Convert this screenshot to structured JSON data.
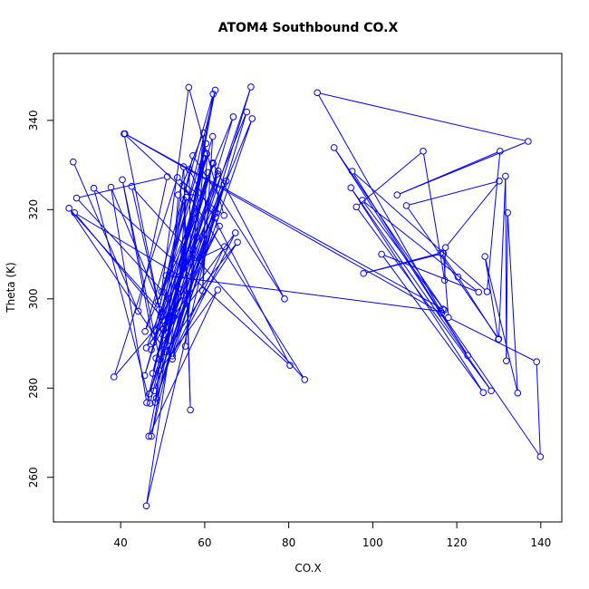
{
  "chart_data": {
    "type": "line",
    "title": "ATOM4 Southbound CO.X",
    "xlabel": "CO.X",
    "ylabel": "Theta (K)",
    "xlim": [
      24,
      145
    ],
    "ylim": [
      250,
      355
    ],
    "x_ticks": [
      40,
      60,
      80,
      100,
      120,
      140
    ],
    "y_ticks": [
      260,
      280,
      300,
      320,
      340
    ],
    "grid": false,
    "marker": "open-circle",
    "series": [
      {
        "name": "",
        "color": "#0000ff",
        "points": [
          [
            28.7,
            330.7
          ],
          [
            44.2,
            297.2
          ],
          [
            51.1,
            327.4
          ],
          [
            29.5,
            322.6
          ],
          [
            50.2,
            301.5
          ],
          [
            55.6,
            322.8
          ],
          [
            53.7,
            302.3
          ],
          [
            60.3,
            334.8
          ],
          [
            49.7,
            301.6
          ],
          [
            56.2,
            347.4
          ],
          [
            64.6,
            318.7
          ],
          [
            53.5,
            327.2
          ],
          [
            38.4,
            282.5
          ],
          [
            55.0,
            300.8
          ],
          [
            46.1,
            289.0
          ],
          [
            57.8,
            318.0
          ],
          [
            48.9,
            299.5
          ],
          [
            37.7,
            325.0
          ],
          [
            46.2,
            276.7
          ],
          [
            59.9,
            331.5
          ],
          [
            55.4,
            289.4
          ],
          [
            59.7,
            337.2
          ],
          [
            53.7,
            323.3
          ],
          [
            51.0,
            289.7
          ],
          [
            62.5,
            346.8
          ],
          [
            47.8,
            290.2
          ],
          [
            40.4,
            326.7
          ],
          [
            49.3,
            286.4
          ],
          [
            71.0,
            347.5
          ],
          [
            48.5,
            277.7
          ],
          [
            64.6,
            325.8
          ],
          [
            46.8,
            278.7
          ],
          [
            66.8,
            340.8
          ],
          [
            45.8,
            292.7
          ],
          [
            62.0,
            345.9
          ],
          [
            47.3,
            269.2
          ],
          [
            58.1,
            313.8
          ],
          [
            50.2,
            293.3
          ],
          [
            40.8,
            337.0
          ],
          [
            57.1,
            322.7
          ],
          [
            54.8,
            325.4
          ],
          [
            83.8,
            281.9
          ],
          [
            42.6,
            325.2
          ],
          [
            49.2,
            297.6
          ],
          [
            27.7,
            320.3
          ],
          [
            50.8,
            288.1
          ],
          [
            67.8,
            312.7
          ],
          [
            50.1,
            291.9
          ],
          [
            71.3,
            340.4
          ],
          [
            48.2,
            276.8
          ],
          [
            55.0,
            329.6
          ],
          [
            56.6,
            275.1
          ],
          [
            55.0,
            322.2
          ],
          [
            49.7,
            296.0
          ],
          [
            29.0,
            319.3
          ],
          [
            54.2,
            305.1
          ],
          [
            70.0,
            341.9
          ],
          [
            52.3,
            286.5
          ],
          [
            67.3,
            314.8
          ],
          [
            50.1,
            293.1
          ],
          [
            63.2,
            328.7
          ],
          [
            47.3,
            288.6
          ],
          [
            63.5,
            316.3
          ],
          [
            48.4,
            286.7
          ],
          [
            61.9,
            330.5
          ],
          [
            51.4,
            300.0
          ],
          [
            62.5,
            319.2
          ],
          [
            46.1,
            253.6
          ],
          [
            56.0,
            315.5
          ],
          [
            46.7,
            269.2
          ],
          [
            63.1,
            302.0
          ],
          [
            49.2,
            283.9
          ],
          [
            60.4,
            332.6
          ],
          [
            47.6,
            283.3
          ],
          [
            62.0,
            330.3
          ],
          [
            79.0,
            300.0
          ],
          [
            57.2,
            332.1
          ],
          [
            48.1,
            293.0
          ],
          [
            65.1,
            326.4
          ],
          [
            48.0,
            279.4
          ],
          [
            62.6,
            318.3
          ],
          [
            52.4,
            296.3
          ],
          [
            63.1,
            328.0
          ],
          [
            52.3,
            287.2
          ],
          [
            64.7,
            311.7
          ],
          [
            56.7,
            308.2
          ],
          [
            56.3,
            329.0
          ],
          [
            80.3,
            285.1
          ],
          [
            33.6,
            324.8
          ],
          [
            47.0,
            276.6
          ],
          [
            60.7,
            328.3
          ],
          [
            45.7,
            282.8
          ],
          [
            61.9,
            336.4
          ],
          [
            59.5,
            301.8
          ],
          [
            60.5,
            332.5
          ],
          [
            50.8,
            305.2
          ],
          [
            116.2,
            297.2
          ],
          [
            86.8,
            346.2
          ],
          [
            137.0,
            335.3
          ],
          [
            105.8,
            323.3
          ],
          [
            130.3,
            333.1
          ],
          [
            127.2,
            301.6
          ],
          [
            95.1,
            328.6
          ],
          [
            122.6,
            287.3
          ],
          [
            90.8,
            333.9
          ],
          [
            117.0,
            297.5
          ],
          [
            97.5,
            322.1
          ],
          [
            125.2,
            301.5
          ],
          [
            102.1,
            310.0
          ],
          [
            126.3,
            279.0
          ],
          [
            94.8,
            324.9
          ],
          [
            128.2,
            279.4
          ],
          [
            96.1,
            320.6
          ],
          [
            112.0,
            333.1
          ],
          [
            117.1,
            304.2
          ],
          [
            117.3,
            311.5
          ],
          [
            130.1,
            326.4
          ],
          [
            108.0,
            320.9
          ],
          [
            130.0,
            291.0
          ],
          [
            131.6,
            327.5
          ],
          [
            131.8,
            286.1
          ],
          [
            132.1,
            319.3
          ],
          [
            134.5,
            278.9
          ],
          [
            126.7,
            309.5
          ],
          [
            129.9,
            290.9
          ],
          [
            120.3,
            304.9
          ],
          [
            116.2,
            310.3
          ],
          [
            97.8,
            305.7
          ],
          [
            116.8,
            310.2
          ],
          [
            118.0,
            295.8
          ],
          [
            139.0,
            285.9
          ],
          [
            139.9,
            264.6
          ],
          [
            116.4,
            296.8
          ],
          [
            41.0,
            337.0
          ],
          [
            116.7,
            297.7
          ]
        ]
      }
    ]
  }
}
